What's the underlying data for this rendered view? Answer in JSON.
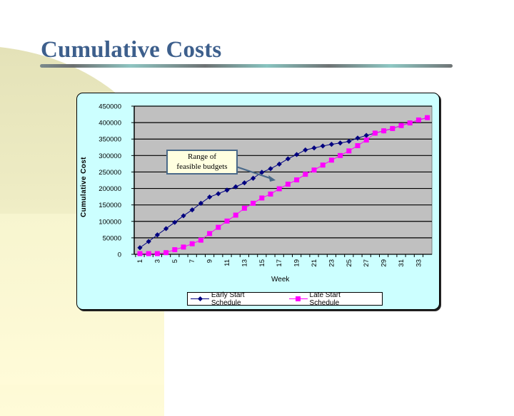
{
  "slide": {
    "title": "Cumulative Costs"
  },
  "annotation": {
    "line1": "Range of",
    "line2": "feasible budgets"
  },
  "colors": {
    "title": "#3d5f8c",
    "chart_background": "#ccffff",
    "plot_background": "#c0c0c0",
    "early_series": "#000080",
    "late_series": "#ff00ff",
    "annotation_fill": "#ffffe0",
    "arrow": "#4a6a8a"
  },
  "chart_data": {
    "type": "line",
    "title": "",
    "xlabel": "Week",
    "ylabel": "Cumulative Cost",
    "ylim": [
      0,
      450000
    ],
    "yticks": [
      0,
      50000,
      100000,
      150000,
      200000,
      250000,
      300000,
      350000,
      400000,
      450000
    ],
    "ytick_labels": [
      "0",
      "50000",
      "100000",
      "150000",
      "200000",
      "250000",
      "300000",
      "350000",
      "400000",
      "450000"
    ],
    "x": [
      1,
      2,
      3,
      4,
      5,
      6,
      7,
      8,
      9,
      10,
      11,
      12,
      13,
      14,
      15,
      16,
      17,
      18,
      19,
      20,
      21,
      22,
      23,
      24,
      25,
      26,
      27,
      28,
      29,
      30,
      31,
      32,
      33,
      34
    ],
    "xtick_labels": [
      "1",
      "3",
      "5",
      "7",
      "9",
      "11",
      "13",
      "15",
      "17",
      "19",
      "21",
      "23",
      "25",
      "27",
      "29",
      "31",
      "33"
    ],
    "grid": true,
    "legend_position": "bottom",
    "series": [
      {
        "name": "Early Start Schedule",
        "marker": "diamond",
        "color": "#000080",
        "values": [
          20000,
          39000,
          59000,
          78000,
          97000,
          117000,
          135000,
          155000,
          174000,
          184000,
          195000,
          205000,
          217000,
          231000,
          249000,
          260000,
          274000,
          290000,
          303000,
          317000,
          323000,
          329000,
          334000,
          338000,
          343000,
          353000,
          361000,
          368000,
          375000,
          382000,
          391000,
          399000,
          408000,
          415000
        ]
      },
      {
        "name": "Late Start Schedule",
        "marker": "square",
        "color": "#ff00ff",
        "values": [
          2000,
          2000,
          2000,
          5000,
          14000,
          22000,
          32000,
          43000,
          63000,
          82000,
          101000,
          119000,
          140000,
          155000,
          171000,
          183000,
          199000,
          213000,
          226000,
          243000,
          256000,
          271000,
          286000,
          300000,
          314000,
          330000,
          347000,
          368000,
          375000,
          382000,
          391000,
          399000,
          408000,
          415000
        ]
      }
    ],
    "annotations": [
      {
        "text": "Range of feasible budgets",
        "arrow_to_week": 16.5,
        "arrow_to_value": 225000
      }
    ]
  }
}
